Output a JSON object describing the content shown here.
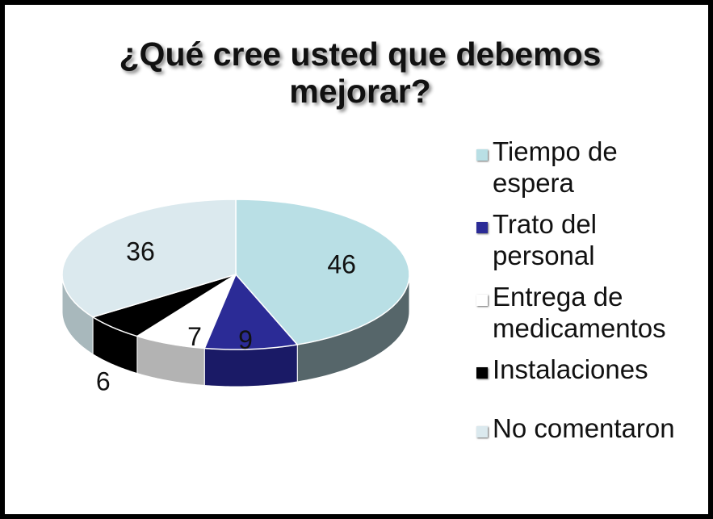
{
  "chart_data": {
    "type": "pie3d",
    "title": "¿Qué cree usted que debemos mejorar?",
    "categories": [
      "Tiempo de espera",
      "Trato del personal",
      "Entrega de medicamentos",
      "Instalaciones",
      "No comentaron"
    ],
    "values": [
      46,
      9,
      7,
      6,
      36
    ],
    "colors": [
      "#b9dfe5",
      "#2b2b96",
      "#ffffff",
      "#000000",
      "#dbe9ee"
    ],
    "side_colors": [
      "#56666a",
      "#1a1a66",
      "#b3b3b3",
      "#000000",
      "#a8b8bc"
    ],
    "legend": "right"
  }
}
